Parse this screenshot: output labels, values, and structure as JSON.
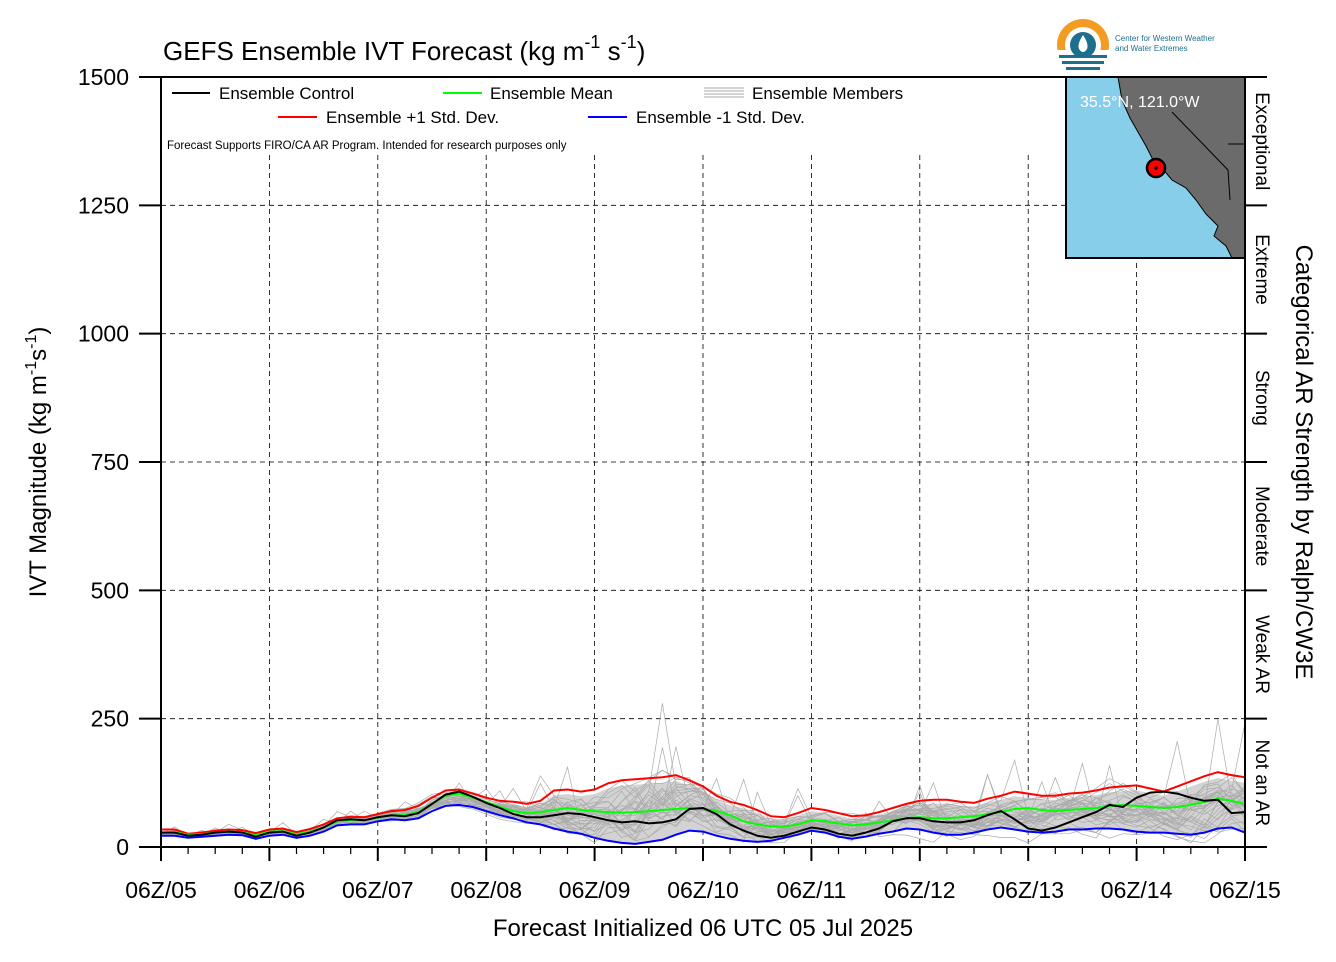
{
  "title": "GEFS Ensemble IVT Forecast (kg m",
  "title_sup1": "-1",
  "title_mid": " s",
  "title_sup2": "-1",
  "title_end": ")",
  "logo": {
    "line1": "Center for Western Weather",
    "line2": "and Water Extremes",
    "colors": {
      "ring": "#f39c22",
      "inner": "#1e6f8e",
      "drop": "#ffffff"
    }
  },
  "legend": {
    "control": "Ensemble Control",
    "mean": "Ensemble Mean",
    "members": "Ensemble Members",
    "plus_std": "Ensemble +1 Std. Dev.",
    "minus_std": "Ensemble -1 Std. Dev."
  },
  "note": "Forecast Supports FIRO/CA AR Program. Intended for research purposes only",
  "inset": {
    "location_label": "35.5°N, 121.0°W",
    "colors": {
      "ocean": "#87ceeb",
      "land": "#6b6b6b",
      "marker": "#ff0000"
    }
  },
  "y_axis_label": "IVT Magnitude (kg m",
  "y_axis_label_sup1": "-1",
  "y_axis_label_mid": "s",
  "y_axis_label_sup2": "-1",
  "y_axis_label_end": ")",
  "x_axis_label": "Forecast Initialized 06 UTC 05 Jul 2025",
  "right_axis_label": "Categorical AR Strength by Ralph/CW3E",
  "categories": [
    "Not an AR",
    "Weak AR",
    "Moderate",
    "Strong",
    "Extreme",
    "Exceptional"
  ],
  "colors": {
    "control": "#000000",
    "mean": "#00ff00",
    "plus_std": "#ff0000",
    "minus_std": "#0000ff",
    "members": "#aaaaaa",
    "spread_fill": "#d3d3d3"
  },
  "chart_data": {
    "type": "line",
    "title": "GEFS Ensemble IVT Forecast (kg m-1 s-1)",
    "xlabel": "Forecast Initialized 06 UTC 05 Jul 2025",
    "ylabel": "IVT Magnitude (kg m-1s-1)",
    "ylim": [
      0,
      1500
    ],
    "xlim": [
      0,
      240
    ],
    "x_unit": "forecast hour",
    "yticks": [
      0,
      250,
      500,
      750,
      1000,
      1250,
      1500
    ],
    "xtick_hours": [
      0,
      24,
      48,
      72,
      96,
      120,
      144,
      168,
      192,
      216,
      240
    ],
    "xtick_labels": [
      "06Z/05",
      "06Z/06",
      "06Z/07",
      "06Z/08",
      "06Z/09",
      "06Z/10",
      "06Z/11",
      "06Z/12",
      "06Z/13",
      "06Z/14",
      "06Z/15"
    ],
    "grid": true,
    "legend_position": "top-left",
    "category_bounds": [
      0,
      250,
      500,
      750,
      1000,
      1250,
      1500
    ],
    "x": [
      0,
      3,
      6,
      9,
      12,
      15,
      18,
      21,
      24,
      27,
      30,
      33,
      36,
      39,
      42,
      45,
      48,
      51,
      54,
      57,
      60,
      63,
      66,
      69,
      72,
      75,
      78,
      81,
      84,
      87,
      90,
      93,
      96,
      99,
      102,
      105,
      108,
      111,
      114,
      117,
      120,
      123,
      126,
      129,
      132,
      135,
      138,
      141,
      144,
      147,
      150,
      153,
      156,
      159,
      162,
      165,
      168,
      171,
      174,
      177,
      180,
      183,
      186,
      189,
      192,
      195,
      198,
      201,
      204,
      207,
      210,
      213,
      216,
      219,
      222,
      225,
      228,
      231,
      234,
      237,
      240
    ],
    "series": [
      {
        "name": "Ensemble Control",
        "values": [
          28,
          28,
          22,
          24,
          28,
          30,
          28,
          20,
          28,
          30,
          22,
          28,
          38,
          52,
          54,
          52,
          58,
          62,
          60,
          66,
          84,
          102,
          108,
          98,
          86,
          76,
          64,
          58,
          58,
          62,
          66,
          64,
          58,
          52,
          48,
          50,
          46,
          48,
          54,
          74,
          76,
          64,
          44,
          32,
          22,
          18,
          22,
          30,
          38,
          34,
          26,
          22,
          28,
          36,
          50,
          56,
          56,
          50,
          48,
          48,
          52,
          62,
          70,
          54,
          36,
          32,
          38,
          48,
          58,
          68,
          82,
          78,
          96,
          106,
          108,
          104,
          96,
          90,
          92,
          66,
          68
        ]
      },
      {
        "name": "Ensemble Mean",
        "values": [
          28,
          29,
          24,
          25,
          28,
          30,
          29,
          23,
          30,
          31,
          25,
          30,
          38,
          50,
          53,
          52,
          57,
          62,
          62,
          68,
          84,
          100,
          104,
          96,
          88,
          78,
          70,
          66,
          68,
          72,
          76,
          72,
          70,
          68,
          67,
          68,
          70,
          72,
          74,
          76,
          74,
          70,
          62,
          50,
          44,
          40,
          40,
          44,
          52,
          50,
          46,
          42,
          44,
          48,
          52,
          56,
          58,
          56,
          56,
          58,
          60,
          64,
          68,
          74,
          76,
          72,
          70,
          72,
          74,
          76,
          80,
          82,
          80,
          78,
          76,
          78,
          82,
          88,
          94,
          90,
          84
        ]
      },
      {
        "name": "Ensemble +1 Std. Dev.",
        "values": [
          34,
          34,
          26,
          28,
          32,
          34,
          33,
          27,
          34,
          36,
          29,
          35,
          44,
          56,
          59,
          58,
          64,
          70,
          72,
          80,
          96,
          110,
          112,
          104,
          96,
          90,
          88,
          84,
          90,
          110,
          112,
          108,
          112,
          124,
          130,
          132,
          134,
          136,
          140,
          130,
          118,
          100,
          88,
          82,
          72,
          60,
          58,
          66,
          76,
          72,
          66,
          60,
          62,
          68,
          76,
          84,
          90,
          92,
          92,
          88,
          86,
          94,
          100,
          108,
          104,
          100,
          100,
          104,
          106,
          110,
          116,
          118,
          120,
          114,
          108,
          118,
          128,
          138,
          146,
          140,
          136
        ]
      },
      {
        "name": "Ensemble -1 Std. Dev.",
        "values": [
          22,
          22,
          18,
          20,
          22,
          24,
          23,
          16,
          22,
          24,
          18,
          22,
          30,
          42,
          44,
          44,
          50,
          54,
          52,
          56,
          70,
          80,
          82,
          78,
          70,
          62,
          56,
          48,
          44,
          36,
          30,
          26,
          18,
          12,
          8,
          6,
          10,
          14,
          24,
          32,
          30,
          22,
          16,
          12,
          10,
          12,
          18,
          24,
          32,
          28,
          20,
          16,
          20,
          26,
          30,
          36,
          34,
          28,
          24,
          24,
          28,
          34,
          38,
          34,
          30,
          28,
          30,
          34,
          34,
          36,
          36,
          34,
          30,
          28,
          28,
          26,
          24,
          28,
          36,
          38,
          28
        ]
      }
    ],
    "members_band": {
      "name": "Ensemble Members",
      "min": 8,
      "max": 280
    }
  }
}
